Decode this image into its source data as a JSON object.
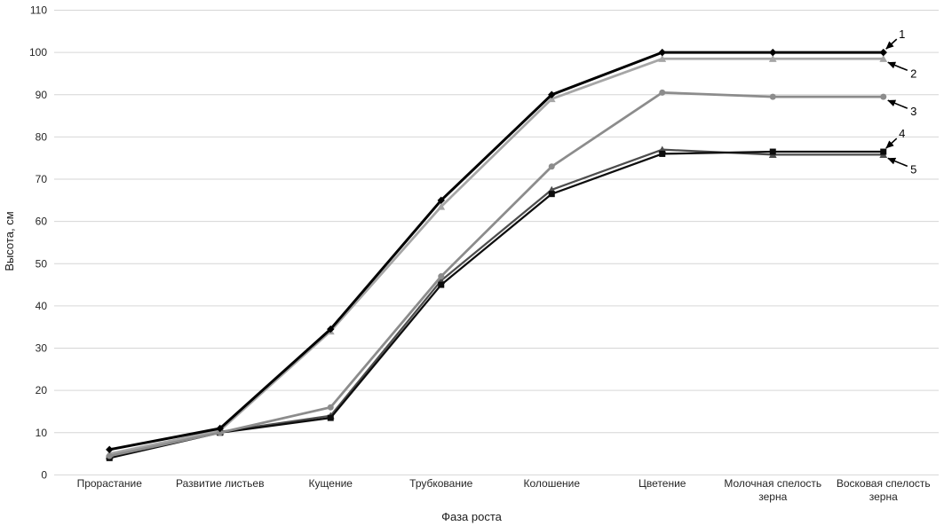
{
  "chart_data": {
    "type": "line",
    "title": "",
    "xlabel": "Фаза роста",
    "ylabel": "Высота, см",
    "ylim": [
      0,
      110
    ],
    "y_ticks": [
      0,
      10,
      20,
      30,
      40,
      50,
      60,
      70,
      80,
      90,
      100,
      110
    ],
    "grid": true,
    "legend_position": "none",
    "categories": [
      "Прорастание",
      "Развитие листьев",
      "Кущение",
      "Трубкование",
      "Колошение",
      "Цветение",
      "Молочная спелость зерна",
      "Восковая спелость зерна"
    ],
    "series": [
      {
        "name": "1",
        "color": "#000000",
        "marker": "diamond",
        "line_width": 3,
        "values": [
          6,
          11,
          34.5,
          65,
          90,
          100,
          100,
          100
        ]
      },
      {
        "name": "2",
        "color": "#a6a6a6",
        "marker": "triangle",
        "line_width": 2.75,
        "values": [
          5,
          10.5,
          34,
          63.5,
          89,
          98.5,
          98.5,
          98.5
        ]
      },
      {
        "name": "3",
        "color": "#8c8c8c",
        "marker": "circle",
        "line_width": 2.75,
        "values": [
          4.5,
          10,
          16,
          47,
          73,
          90.5,
          89.5,
          89.5
        ]
      },
      {
        "name": "4",
        "color": "#0d0d0d",
        "marker": "square",
        "line_width": 2.25,
        "values": [
          4,
          10,
          13.5,
          45,
          66.5,
          76,
          76.5,
          76.5
        ]
      },
      {
        "name": "5",
        "color": "#4d4d4d",
        "marker": "triangle",
        "line_width": 2.25,
        "values": [
          4.5,
          10.2,
          14,
          46,
          67.5,
          77,
          75.8,
          75.8
        ]
      }
    ],
    "annotations": [
      {
        "label": "1",
        "series_index": 0,
        "placement": "above"
      },
      {
        "label": "2",
        "series_index": 1,
        "placement": "below"
      },
      {
        "label": "3",
        "series_index": 2,
        "placement": "below"
      },
      {
        "label": "4",
        "series_index": 3,
        "placement": "above"
      },
      {
        "label": "5",
        "series_index": 4,
        "placement": "below"
      }
    ],
    "colors": {
      "gridline": "#d6d6d6",
      "tick_text": "#262626",
      "annotation_arrow": "#000000",
      "background": "#ffffff"
    }
  }
}
